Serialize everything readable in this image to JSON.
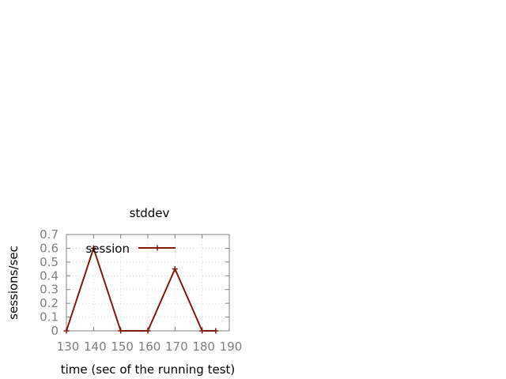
{
  "chart_data": {
    "type": "line",
    "title": "stddev",
    "xlabel": "time (sec of the running test)",
    "ylabel": "sessions/sec",
    "xlim": [
      130,
      190
    ],
    "ylim": [
      0,
      0.7
    ],
    "x_ticks": [
      "130",
      "140",
      "150",
      "160",
      "170",
      "180",
      "190"
    ],
    "y_ticks": [
      "0",
      "0.1",
      "0.2",
      "0.3",
      "0.4",
      "0.5",
      "0.6",
      "0.7"
    ],
    "grid": true,
    "legend_position": "top-left",
    "series": [
      {
        "name": "session",
        "color": "#7f1a0e",
        "marker": "plus",
        "x": [
          130,
          140,
          150,
          160,
          170,
          180,
          185
        ],
        "y": [
          0,
          0.6,
          0,
          0,
          0.45,
          0,
          0
        ]
      }
    ]
  }
}
